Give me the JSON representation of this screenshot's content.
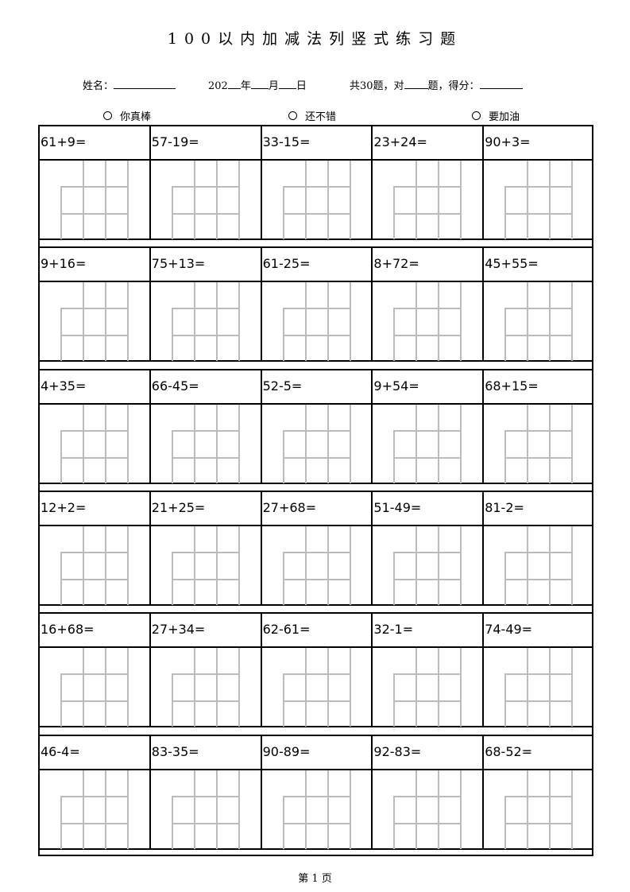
{
  "title": "100以内加减法列竖式练习题",
  "info": {
    "name_label": "姓名：",
    "year_prefix": "202",
    "year_label": "年",
    "month_label": "月",
    "day_label": "日",
    "total_label": "共30题，对",
    "correct_suffix": "题，得分："
  },
  "ratings": [
    "你真棒",
    "还不错",
    "要加油"
  ],
  "problems": [
    [
      "61+9=",
      "57-19=",
      "33-15=",
      "23+24=",
      "90+3="
    ],
    [
      "9+16=",
      "75+13=",
      "61-25=",
      "8+72=",
      "45+55="
    ],
    [
      "4+35=",
      "66-45=",
      "52-5=",
      "9+54=",
      "68+15="
    ],
    [
      "12+2=",
      "21+25=",
      "27+68=",
      "51-49=",
      "81-2="
    ],
    [
      "16+68=",
      "27+34=",
      "62-61=",
      "32-1=",
      "74-49="
    ],
    [
      "46-4=",
      "83-35=",
      "90-89=",
      "92-83=",
      "68-52="
    ]
  ],
  "footer": "第 1 页"
}
